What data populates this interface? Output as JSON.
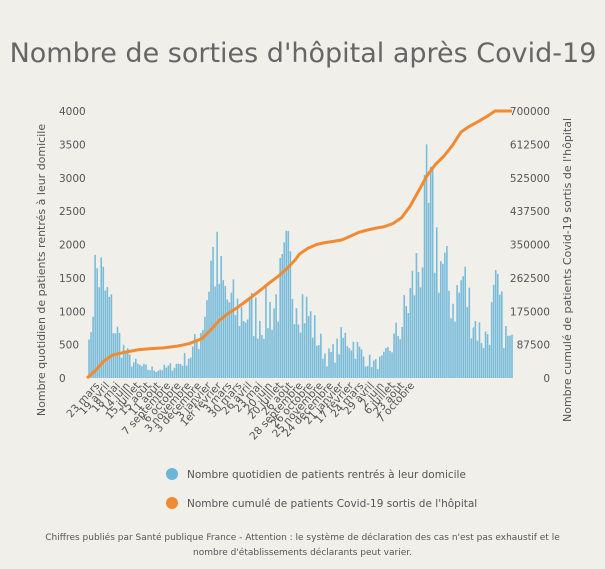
{
  "chart_data": {
    "type": "bar",
    "title": "Nombre de sorties d'hôpital après Covid-19",
    "ylabel_left": "Nombre quotidien de patients rentrés à leur domicile",
    "ylabel_right": "Nombre cumulé de patients Covid-19 sortis de l'hôpital",
    "ylim_left": [
      0,
      4000
    ],
    "ylim_right": [
      0,
      700000
    ],
    "yticks_left": [
      "0",
      "500",
      "1000",
      "1500",
      "2000",
      "2500",
      "3000",
      "3500",
      "4000"
    ],
    "yticks_right": [
      "0",
      "87500",
      "175000",
      "262500",
      "350000",
      "437500",
      "525000",
      "612500",
      "700000"
    ],
    "x_tick_labels": [
      "23 mars",
      "19 avril",
      "18 mai",
      "14 juin",
      "15 juillet",
      "15 août",
      "11 août",
      "7 septembre",
      "6 octobre",
      "3 novembre",
      "3 décembre",
      "3 janvier",
      "1er février",
      "3 mars",
      "30 mars",
      "26 avril",
      "23 mai",
      "20 juin",
      "20 juillet",
      "26 août",
      "28 septembre",
      "26 octobre",
      "25 novembre",
      "24 décembre",
      "21 janvier",
      "17 février",
      "24 mars",
      "29 avril",
      "2 juin",
      "6 juillet",
      "23 août",
      "7 octobre"
    ],
    "grid": false,
    "legend_position": "bottom",
    "series": [
      {
        "name": "Nombre quotidien de patients rentrés à leur domicile",
        "type": "bar",
        "axis": "left",
        "color": "#6bb6d8",
        "envelope": [
          [
            0,
            0
          ],
          [
            0.01,
            1100
          ],
          [
            0.018,
            1900
          ],
          [
            0.027,
            2050
          ],
          [
            0.04,
            1650
          ],
          [
            0.055,
            1300
          ],
          [
            0.07,
            850
          ],
          [
            0.085,
            550
          ],
          [
            0.1,
            350
          ],
          [
            0.12,
            230
          ],
          [
            0.145,
            170
          ],
          [
            0.165,
            160
          ],
          [
            0.19,
            190
          ],
          [
            0.22,
            280
          ],
          [
            0.245,
            450
          ],
          [
            0.265,
            800
          ],
          [
            0.28,
            1400
          ],
          [
            0.29,
            2100
          ],
          [
            0.3,
            2300
          ],
          [
            0.31,
            1850
          ],
          [
            0.33,
            1450
          ],
          [
            0.355,
            1250
          ],
          [
            0.385,
            1200
          ],
          [
            0.415,
            1150
          ],
          [
            0.44,
            1350
          ],
          [
            0.46,
            1750
          ],
          [
            0.47,
            2100
          ],
          [
            0.48,
            1900
          ],
          [
            0.5,
            1550
          ],
          [
            0.52,
            1200
          ],
          [
            0.545,
            700
          ],
          [
            0.565,
            380
          ],
          [
            0.585,
            500
          ],
          [
            0.6,
            700
          ],
          [
            0.615,
            760
          ],
          [
            0.635,
            560
          ],
          [
            0.655,
            360
          ],
          [
            0.68,
            260
          ],
          [
            0.7,
            350
          ],
          [
            0.72,
            650
          ],
          [
            0.74,
            1000
          ],
          [
            0.76,
            1500
          ],
          [
            0.775,
            1950
          ],
          [
            0.79,
            2500
          ],
          [
            0.8,
            2900
          ],
          [
            0.81,
            3000
          ],
          [
            0.82,
            2600
          ],
          [
            0.84,
            1950
          ],
          [
            0.86,
            1450
          ],
          [
            0.875,
            1550
          ],
          [
            0.885,
            1900
          ],
          [
            0.895,
            1500
          ],
          [
            0.915,
            1000
          ],
          [
            0.935,
            700
          ],
          [
            0.95,
            1050
          ],
          [
            0.96,
            1500
          ],
          [
            0.97,
            1400
          ],
          [
            0.985,
            800
          ],
          [
            1,
            600
          ]
        ],
        "peak_value": 3500
      },
      {
        "name": "Nombre cumulé de patients Covid-19 sortis de l'hôpital",
        "type": "line",
        "axis": "right",
        "color": "#f08a33",
        "points": [
          [
            0,
            0
          ],
          [
            0.02,
            20000
          ],
          [
            0.04,
            45000
          ],
          [
            0.06,
            60000
          ],
          [
            0.09,
            68000
          ],
          [
            0.12,
            74000
          ],
          [
            0.15,
            77000
          ],
          [
            0.18,
            79000
          ],
          [
            0.21,
            83000
          ],
          [
            0.24,
            90000
          ],
          [
            0.27,
            103000
          ],
          [
            0.29,
            125000
          ],
          [
            0.31,
            150000
          ],
          [
            0.33,
            168000
          ],
          [
            0.35,
            182000
          ],
          [
            0.37,
            198000
          ],
          [
            0.39,
            215000
          ],
          [
            0.41,
            232000
          ],
          [
            0.43,
            250000
          ],
          [
            0.45,
            267000
          ],
          [
            0.47,
            287000
          ],
          [
            0.49,
            310000
          ],
          [
            0.5,
            325000
          ],
          [
            0.52,
            340000
          ],
          [
            0.54,
            350000
          ],
          [
            0.56,
            355000
          ],
          [
            0.58,
            358000
          ],
          [
            0.6,
            362000
          ],
          [
            0.62,
            372000
          ],
          [
            0.64,
            382000
          ],
          [
            0.66,
            388000
          ],
          [
            0.68,
            393000
          ],
          [
            0.7,
            397000
          ],
          [
            0.72,
            405000
          ],
          [
            0.74,
            420000
          ],
          [
            0.76,
            450000
          ],
          [
            0.78,
            490000
          ],
          [
            0.8,
            530000
          ],
          [
            0.82,
            560000
          ],
          [
            0.84,
            582000
          ],
          [
            0.86,
            610000
          ],
          [
            0.88,
            645000
          ],
          [
            0.9,
            660000
          ],
          [
            0.92,
            672000
          ],
          [
            0.94,
            685000
          ],
          [
            0.96,
            700000
          ],
          [
            1,
            700000
          ]
        ]
      }
    ]
  },
  "legend": {
    "items": [
      {
        "label": "Nombre quotidien de patients rentrés à leur domicile",
        "color": "#6bb6d8"
      },
      {
        "label": "Nombre cumulé de patients Covid-19 sortis de l'hôpital",
        "color": "#f08a33"
      }
    ]
  },
  "footnote": "Chiffres publiés par Santé publique France - Attention : le système de déclaration des cas n'est pas exhaustif et le nombre d'établissements déclarants peut varier."
}
